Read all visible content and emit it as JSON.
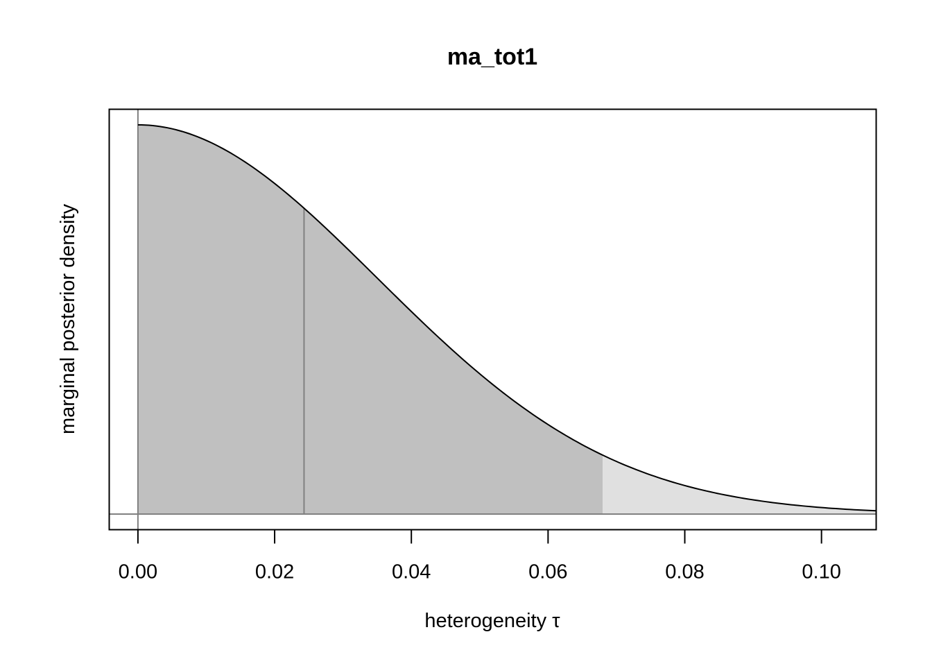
{
  "chart_data": {
    "type": "area",
    "title": "ma_tot1",
    "xlabel": "heterogeneity τ",
    "ylabel": "marginal posterior density",
    "xlim": [
      -0.0042,
      0.108
    ],
    "ylim": [
      -0.04,
      1.04
    ],
    "x_ticks": [
      0.0,
      0.02,
      0.04,
      0.06,
      0.08,
      0.1
    ],
    "x_tick_labels": [
      "0.00",
      "0.02",
      "0.04",
      "0.06",
      "0.08",
      "0.10"
    ],
    "y_ticks_shown": false,
    "median": 0.0243,
    "interval_upper": 0.068,
    "colors": {
      "interval_fill": "#c0c0c0",
      "tail_fill": "#e0e0e0",
      "curve": "#000000",
      "reference_lines": "#808080"
    },
    "density_curve": {
      "x": [
        0.0,
        0.005,
        0.01,
        0.015,
        0.02,
        0.024,
        0.03,
        0.035,
        0.04,
        0.045,
        0.05,
        0.055,
        0.06,
        0.065,
        0.068,
        0.07,
        0.075,
        0.08,
        0.085,
        0.09,
        0.095,
        0.1,
        0.105,
        0.108
      ],
      "y": [
        1.0,
        0.988,
        0.956,
        0.901,
        0.828,
        0.812,
        0.661,
        0.573,
        0.488,
        0.398,
        0.313,
        0.238,
        0.176,
        0.128,
        0.165,
        0.09,
        0.065,
        0.046,
        0.034,
        0.024,
        0.017,
        0.012,
        0.008,
        0.006
      ]
    }
  }
}
